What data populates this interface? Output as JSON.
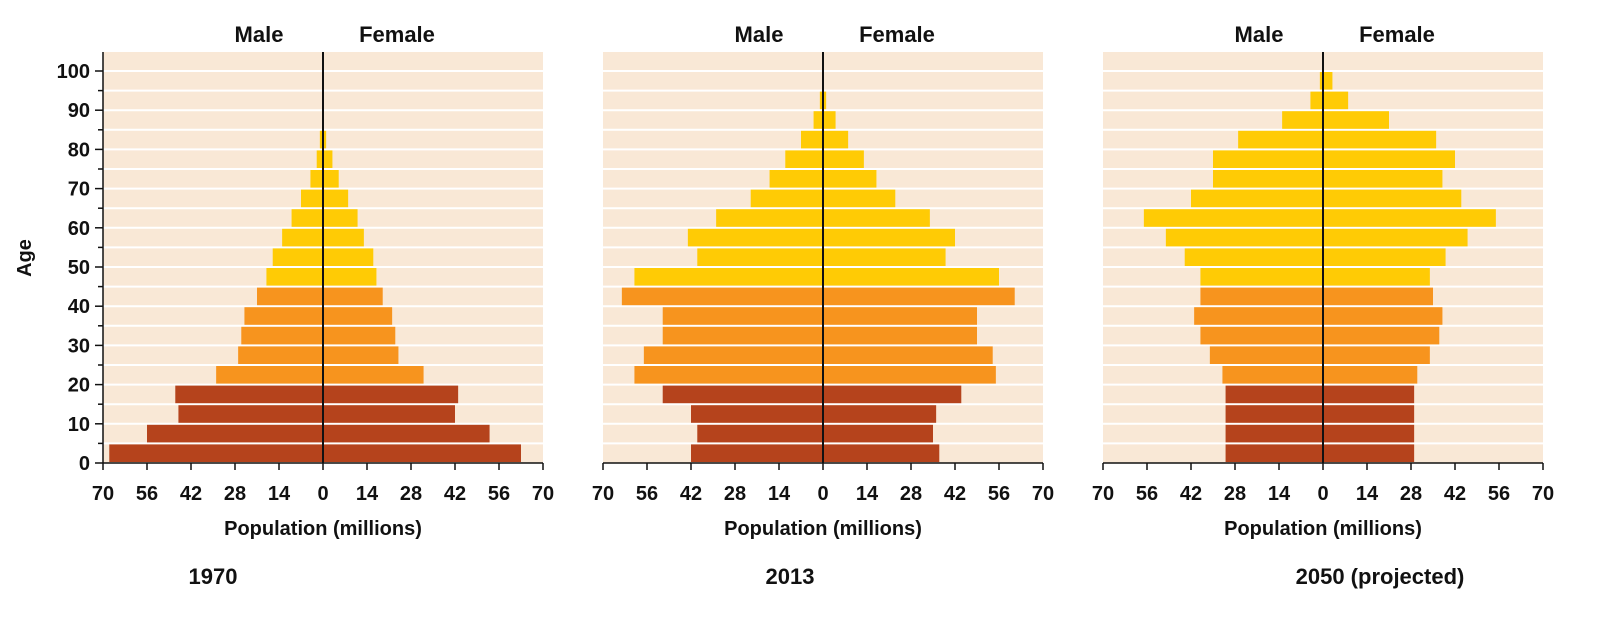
{
  "colors": {
    "background_panel": "#f9e8d6",
    "band_0_19": "#b5431c",
    "band_20_44": "#f7941e",
    "band_45_plus": "#ffcb05",
    "gridline": "#ffffff",
    "axis": "#111111"
  },
  "chart_data": [
    {
      "type": "bar",
      "orientation": "horizontal",
      "title": "1970",
      "xlabel": "Population (millions)",
      "ylabel": "Age",
      "xlim": [
        -70,
        70
      ],
      "ylim": [
        0,
        105
      ],
      "x_ticks": [
        "70",
        "56",
        "42",
        "28",
        "14",
        "0",
        "14",
        "28",
        "42",
        "56",
        "70"
      ],
      "y_ticks": [
        "0",
        "10",
        "20",
        "30",
        "40",
        "50",
        "60",
        "70",
        "80",
        "90",
        "100"
      ],
      "header_left": "Male",
      "header_right": "Female",
      "categories": [
        "0-4",
        "5-9",
        "10-14",
        "15-19",
        "20-24",
        "25-29",
        "30-34",
        "35-39",
        "40-44",
        "45-49",
        "50-54",
        "55-59",
        "60-64",
        "65-69",
        "70-74",
        "75-79",
        "80-84"
      ],
      "series": [
        {
          "name": "Male",
          "values": [
            68,
            56,
            46,
            47,
            34,
            27,
            26,
            25,
            21,
            18,
            16,
            13,
            10,
            7,
            4,
            2,
            1
          ]
        },
        {
          "name": "Female",
          "values": [
            63,
            53,
            42,
            43,
            32,
            24,
            23,
            22,
            19,
            17,
            16,
            13,
            11,
            8,
            5,
            3,
            1
          ]
        }
      ]
    },
    {
      "type": "bar",
      "orientation": "horizontal",
      "title": "2013",
      "xlabel": "Population (millions)",
      "ylabel": "",
      "xlim": [
        -70,
        70
      ],
      "ylim": [
        0,
        105
      ],
      "x_ticks": [
        "70",
        "56",
        "42",
        "28",
        "14",
        "0",
        "14",
        "28",
        "42",
        "56",
        "70"
      ],
      "header_left": "Male",
      "header_right": "Female",
      "categories": [
        "0-4",
        "5-9",
        "10-14",
        "15-19",
        "20-24",
        "25-29",
        "30-34",
        "35-39",
        "40-44",
        "45-49",
        "50-54",
        "55-59",
        "60-64",
        "65-69",
        "70-74",
        "75-79",
        "80-84",
        "85-89",
        "90-94"
      ],
      "series": [
        {
          "name": "Male",
          "values": [
            42,
            40,
            42,
            51,
            60,
            57,
            51,
            51,
            64,
            60,
            40,
            43,
            34,
            23,
            17,
            12,
            7,
            3,
            1
          ]
        },
        {
          "name": "Female",
          "values": [
            37,
            35,
            36,
            44,
            55,
            54,
            49,
            49,
            61,
            56,
            39,
            42,
            34,
            23,
            17,
            13,
            8,
            4,
            1
          ]
        }
      ]
    },
    {
      "type": "bar",
      "orientation": "horizontal",
      "title": "2050 (projected)",
      "xlabel": "Population (millions)",
      "ylabel": "",
      "xlim": [
        -70,
        70
      ],
      "ylim": [
        0,
        105
      ],
      "x_ticks": [
        "70",
        "56",
        "42",
        "28",
        "14",
        "0",
        "14",
        "28",
        "42",
        "56",
        "70"
      ],
      "header_left": "Male",
      "header_right": "Female",
      "categories": [
        "0-4",
        "5-9",
        "10-14",
        "15-19",
        "20-24",
        "25-29",
        "30-34",
        "35-39",
        "40-44",
        "45-49",
        "50-54",
        "55-59",
        "60-64",
        "65-69",
        "70-74",
        "75-79",
        "80-84",
        "85-89",
        "90-94",
        "95-99"
      ],
      "series": [
        {
          "name": "Male",
          "values": [
            31,
            31,
            31,
            31,
            32,
            36,
            39,
            41,
            39,
            39,
            44,
            50,
            57,
            42,
            35,
            35,
            27,
            13,
            4,
            1
          ]
        },
        {
          "name": "Female",
          "values": [
            29,
            29,
            29,
            29,
            30,
            34,
            37,
            38,
            35,
            34,
            39,
            46,
            55,
            44,
            38,
            42,
            36,
            21,
            8,
            3
          ]
        }
      ]
    }
  ]
}
